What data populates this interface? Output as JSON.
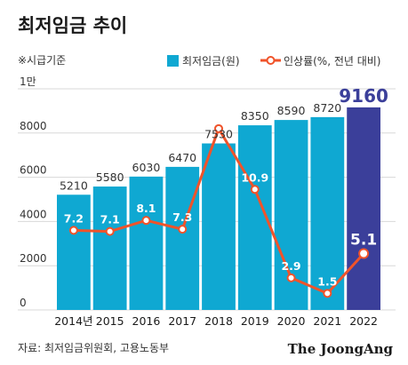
{
  "title": "최저임금 추이",
  "note": "※시급기준",
  "source": "자료: 최저임금위원회, 고용노동부",
  "brand": "The JoongAng",
  "colors": {
    "bar": "#0fa8d2",
    "bar_highlight": "#3b3f9a",
    "line": "#f0532a",
    "marker_fill": "#ffffff",
    "grid": "#d8d8d8",
    "highlight_text": "#3b3f9a"
  },
  "chart_data": {
    "type": "bar",
    "categories": [
      "2014년",
      "2015",
      "2016",
      "2017",
      "2018",
      "2019",
      "2020",
      "2021",
      "2022"
    ],
    "series": [
      {
        "name": "최저임금(원)",
        "type": "bar",
        "values": [
          5210,
          5580,
          6030,
          6470,
          7530,
          8350,
          8590,
          8720,
          9160
        ]
      },
      {
        "name": "인상률(%, 전년 대비)",
        "type": "line",
        "values": [
          7.2,
          7.1,
          8.1,
          7.3,
          16.4,
          10.9,
          2.9,
          1.5,
          5.1
        ]
      }
    ],
    "highlight_index": 8,
    "y_ticks": [
      "0",
      "2000",
      "4000",
      "6000",
      "8000",
      "1만"
    ],
    "y_tick_values": [
      0,
      2000,
      4000,
      6000,
      8000,
      10000
    ],
    "ylim": [
      0,
      10000
    ],
    "rate_ylim": [
      0,
      20
    ],
    "grid": true,
    "legend_position": "top-right"
  }
}
